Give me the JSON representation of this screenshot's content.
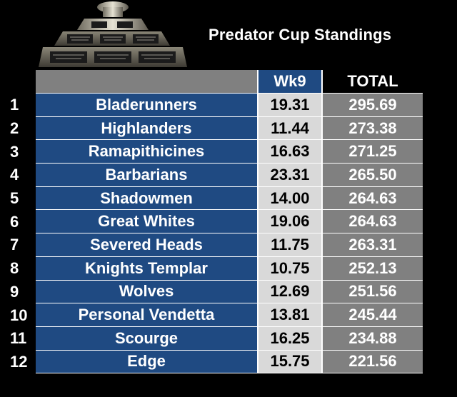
{
  "title": "Predator Cup Standings",
  "colors": {
    "background": "#000000",
    "team_cell": "#1f4a82",
    "week_cell": "#d9d9d9",
    "total_cell": "#808080",
    "header_grey": "#808080"
  },
  "trophy": {
    "icon": "trophy-icon"
  },
  "headers": {
    "team": "",
    "week": "Wk9",
    "total": "TOTAL"
  },
  "rows": [
    {
      "rank": "1",
      "team": "Bladerunners",
      "week": "19.31",
      "total": "295.69"
    },
    {
      "rank": "2",
      "team": "Highlanders",
      "week": "11.44",
      "total": "273.38"
    },
    {
      "rank": "3",
      "team": "Ramapithicines",
      "week": "16.63",
      "total": "271.25"
    },
    {
      "rank": "4",
      "team": "Barbarians",
      "week": "23.31",
      "total": "265.50"
    },
    {
      "rank": "5",
      "team": "Shadowmen",
      "week": "14.00",
      "total": "264.63"
    },
    {
      "rank": "6",
      "team": "Great Whites",
      "week": "19.06",
      "total": "264.63"
    },
    {
      "rank": "7",
      "team": "Severed Heads",
      "week": "11.75",
      "total": "263.31"
    },
    {
      "rank": "8",
      "team": "Knights Templar",
      "week": "10.75",
      "total": "252.13"
    },
    {
      "rank": "9",
      "team": "Wolves",
      "week": "12.69",
      "total": "251.56"
    },
    {
      "rank": "10",
      "team": "Personal Vendetta",
      "week": "13.81",
      "total": "245.44"
    },
    {
      "rank": "11",
      "team": "Scourge",
      "week": "16.25",
      "total": "234.88"
    },
    {
      "rank": "12",
      "team": "Edge",
      "week": "15.75",
      "total": "221.56"
    }
  ]
}
